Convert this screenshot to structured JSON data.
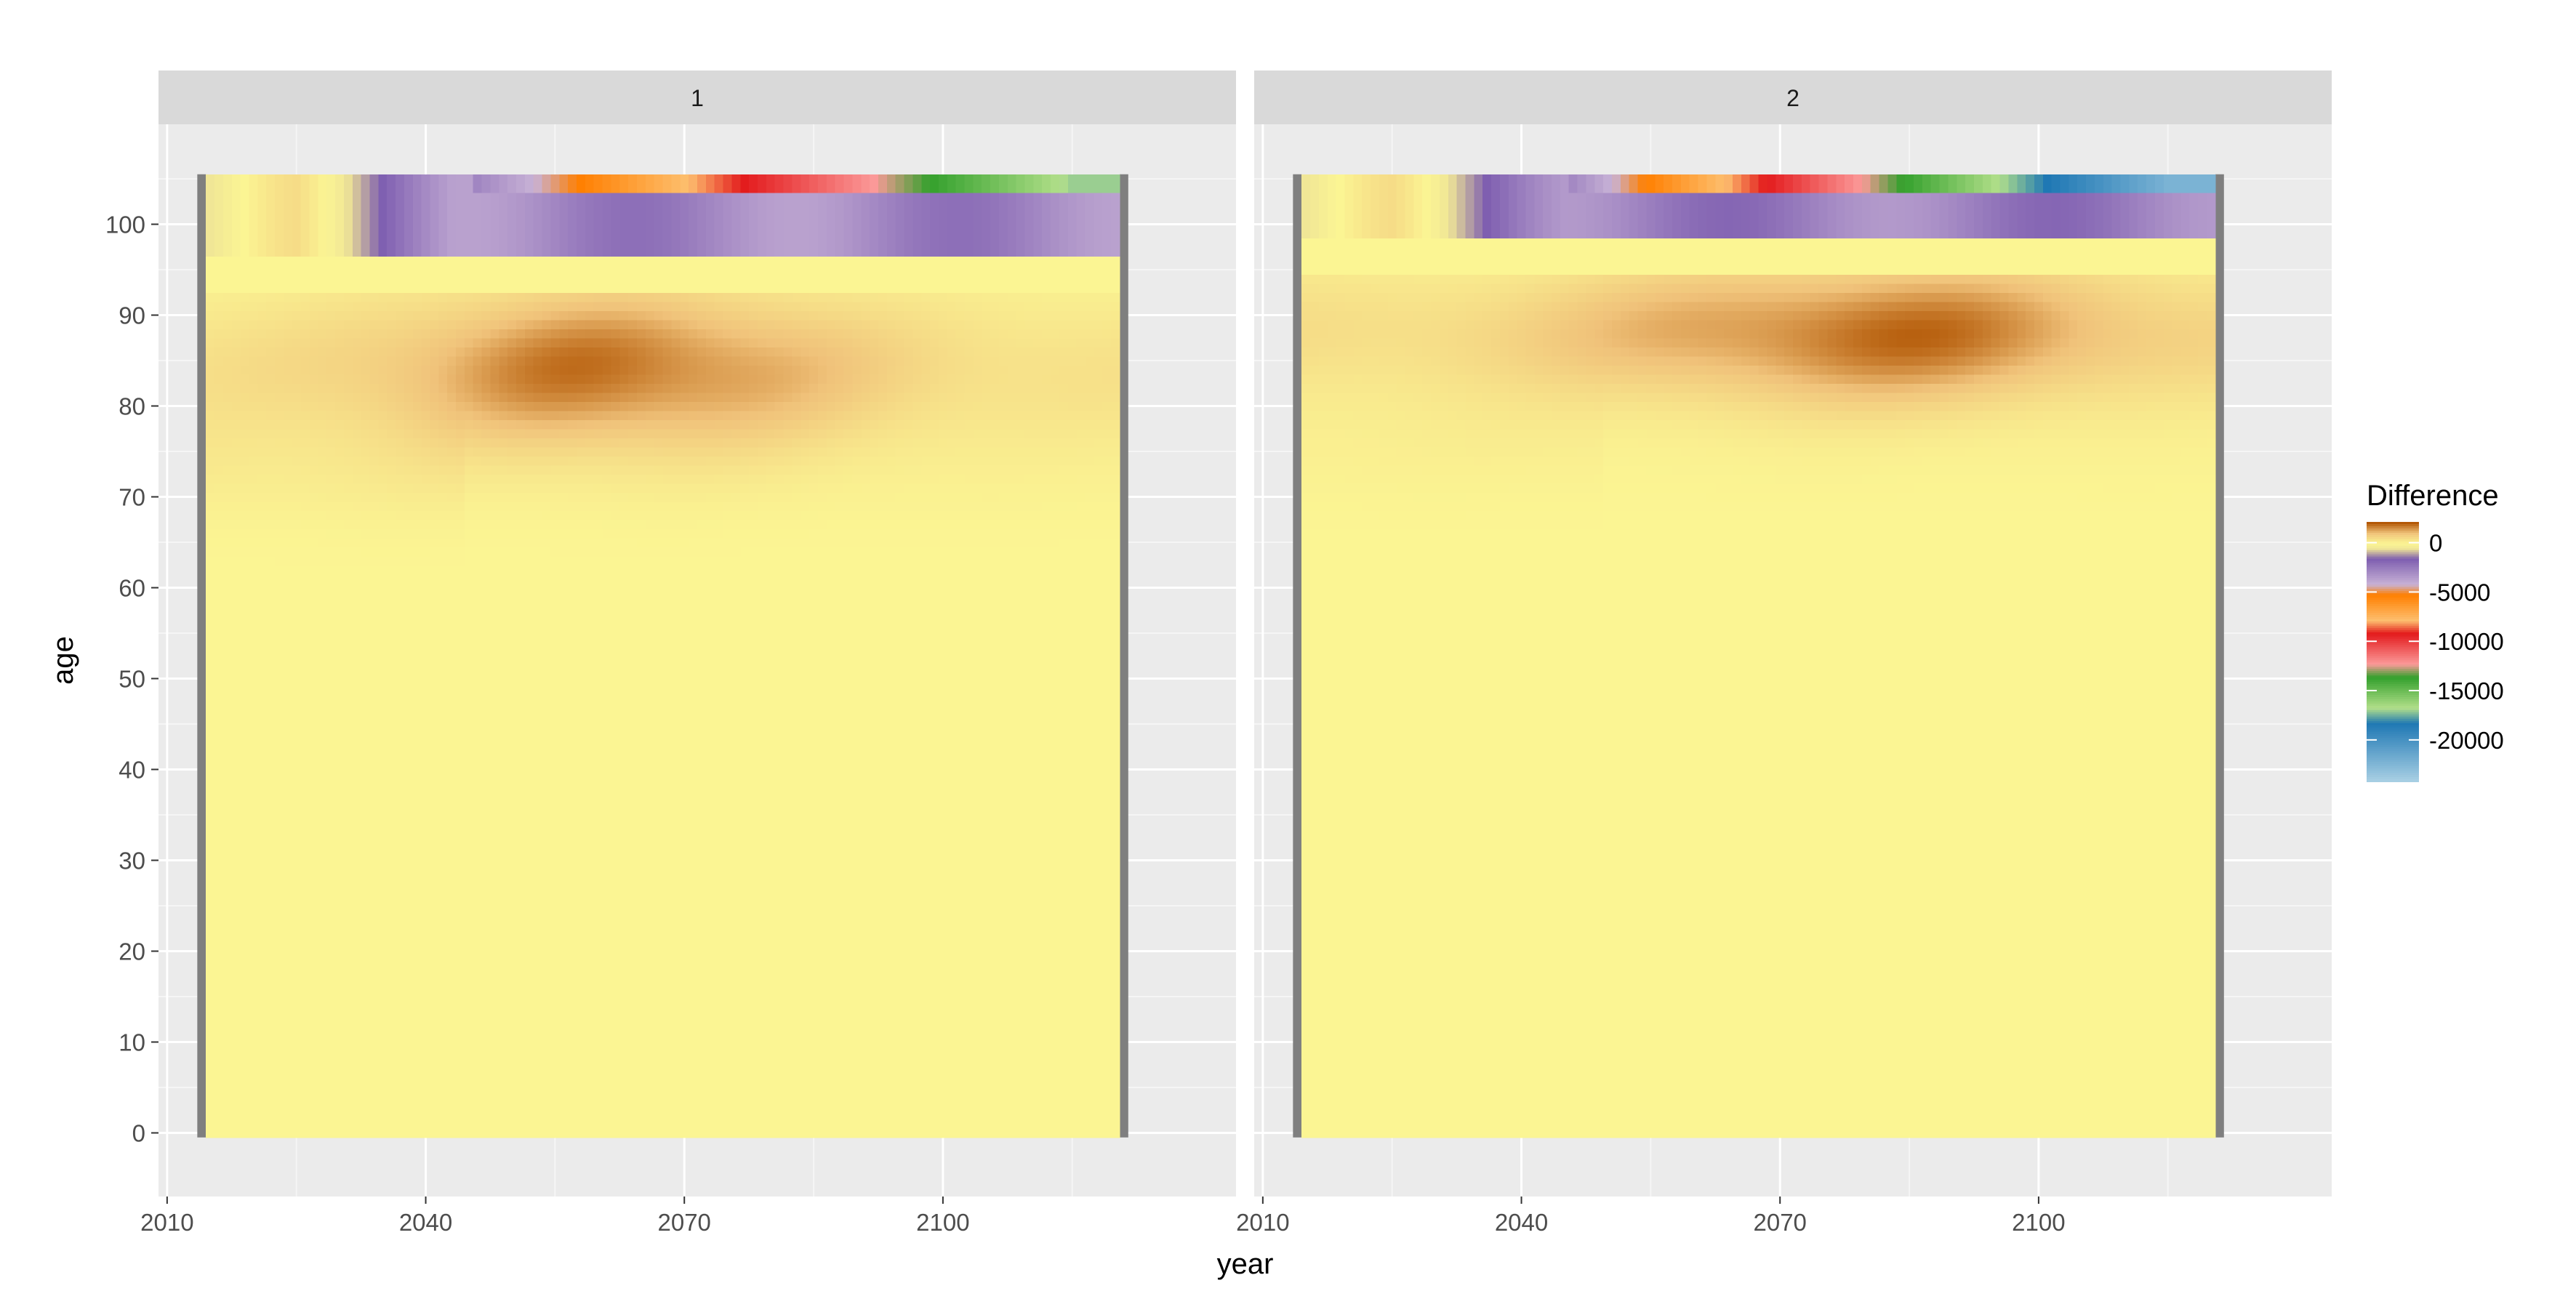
{
  "chart_data": {
    "type": "heatmap",
    "title": "",
    "facets": [
      "1",
      "2"
    ],
    "xlabel": "year",
    "ylabel": "age",
    "xlim": [
      2009,
      2134
    ],
    "ylim": [
      -7,
      111
    ],
    "x_ticks": [
      2010,
      2040,
      2070,
      2100
    ],
    "y_ticks": [
      0,
      10,
      20,
      30,
      40,
      50,
      60,
      70,
      80,
      90,
      100
    ],
    "grid": true,
    "legend": {
      "title": "Difference",
      "placement": "right",
      "breaks": [
        0,
        -5000,
        -10000,
        -15000,
        -20000
      ],
      "labels": [
        "0",
        "-5000",
        "-10000",
        "-15000",
        "-20000"
      ],
      "colors": [
        "#b35806",
        "#f0c27a",
        "#fbf593",
        "#7e5eb0",
        "#c8b2d6",
        "#ff7f00",
        "#fdbf6f",
        "#e31a1c",
        "#fb9a99",
        "#33a02c",
        "#b2df8a",
        "#1f78b4",
        "#a6cee3"
      ]
    },
    "data_extent": {
      "year": [
        2015,
        2120
      ],
      "age": [
        0,
        105
      ]
    },
    "na_fill_years": [
      2014,
      2121
    ],
    "series": [
      {
        "facet": "1",
        "features": [
          {
            "kind": "near-zero",
            "region": "age 0-65, all years",
            "value": 0
          },
          {
            "kind": "positive",
            "region": "age 70-95 cohort bands",
            "peak_age": 85,
            "peak_years": [
              2045,
              2075
            ]
          },
          {
            "kind": "negative",
            "region": "age 95-105",
            "peak_years": [
              2040,
              2115
            ],
            "min_value": -20000
          }
        ]
      },
      {
        "facet": "2",
        "features": [
          {
            "kind": "near-zero",
            "region": "age 0-70, all years",
            "value": 0
          },
          {
            "kind": "positive",
            "region": "age 75-97 cohort bands",
            "peak_age": 89,
            "peak_years": [
              2055,
              2110
            ]
          },
          {
            "kind": "negative",
            "region": "age 97-105",
            "peak_years": [
              2045,
              2115
            ],
            "min_value": -20000
          }
        ]
      }
    ]
  }
}
